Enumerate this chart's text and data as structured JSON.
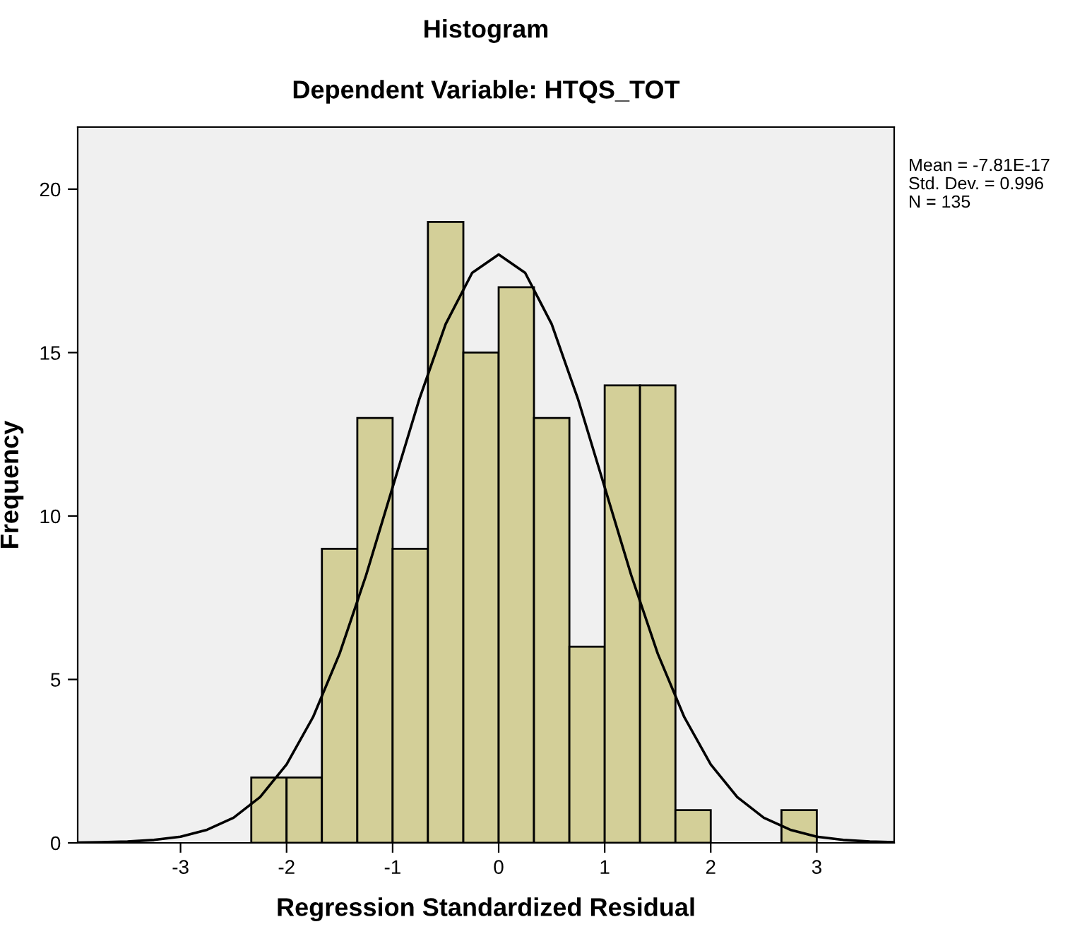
{
  "chart_data": {
    "type": "histogram",
    "title": "Histogram",
    "subtitle": "Dependent Variable: HTQS_TOT",
    "xlabel": "Regression Standardized Residual",
    "ylabel": "Frequency",
    "bins": [
      -2.333,
      -2.0,
      -1.667,
      -1.333,
      -1.0,
      -0.667,
      -0.333,
      0.0,
      0.333,
      0.667,
      1.0,
      1.333,
      1.667,
      2.0,
      2.333,
      2.667,
      3.0
    ],
    "values": [
      2,
      2,
      9,
      13,
      9,
      19,
      15,
      17,
      13,
      6,
      14,
      14,
      1,
      0,
      0,
      1
    ],
    "color": "#d3cf98",
    "series": [
      {
        "type": "line",
        "color": "#000000",
        "x": [
          -3.97,
          -3.75,
          -3.5,
          -3.25,
          -3.0,
          -2.75,
          -2.5,
          -2.25,
          -2.0,
          -1.75,
          -1.5,
          -1.25,
          -1.0,
          -0.75,
          -0.5,
          -0.25,
          0.0,
          0.25,
          0.5,
          0.75,
          1.0,
          1.25,
          1.5,
          1.75,
          2.0,
          2.25,
          2.5,
          2.75,
          3.0,
          3.25,
          3.5,
          3.73
        ],
        "values": [
          0.01,
          0.02,
          0.04,
          0.09,
          0.19,
          0.4,
          0.77,
          1.4,
          2.4,
          3.85,
          5.79,
          8.19,
          10.88,
          13.56,
          15.87,
          17.44,
          18.0,
          17.44,
          15.87,
          13.56,
          10.88,
          8.19,
          5.79,
          3.85,
          2.4,
          1.4,
          0.77,
          0.4,
          0.19,
          0.09,
          0.04,
          0.02
        ]
      }
    ],
    "xlim": [
      -3.97,
      3.73
    ],
    "ylim": [
      0,
      21.9
    ],
    "xticks": [
      -3,
      -2,
      -1,
      0,
      1,
      2,
      3
    ],
    "yticks": [
      0,
      5,
      10,
      15,
      20
    ],
    "annotations": [
      "Mean = -7.81E-17",
      "Std. Dev. = 0.996",
      "N = 135"
    ],
    "grid": false,
    "legend": false
  }
}
